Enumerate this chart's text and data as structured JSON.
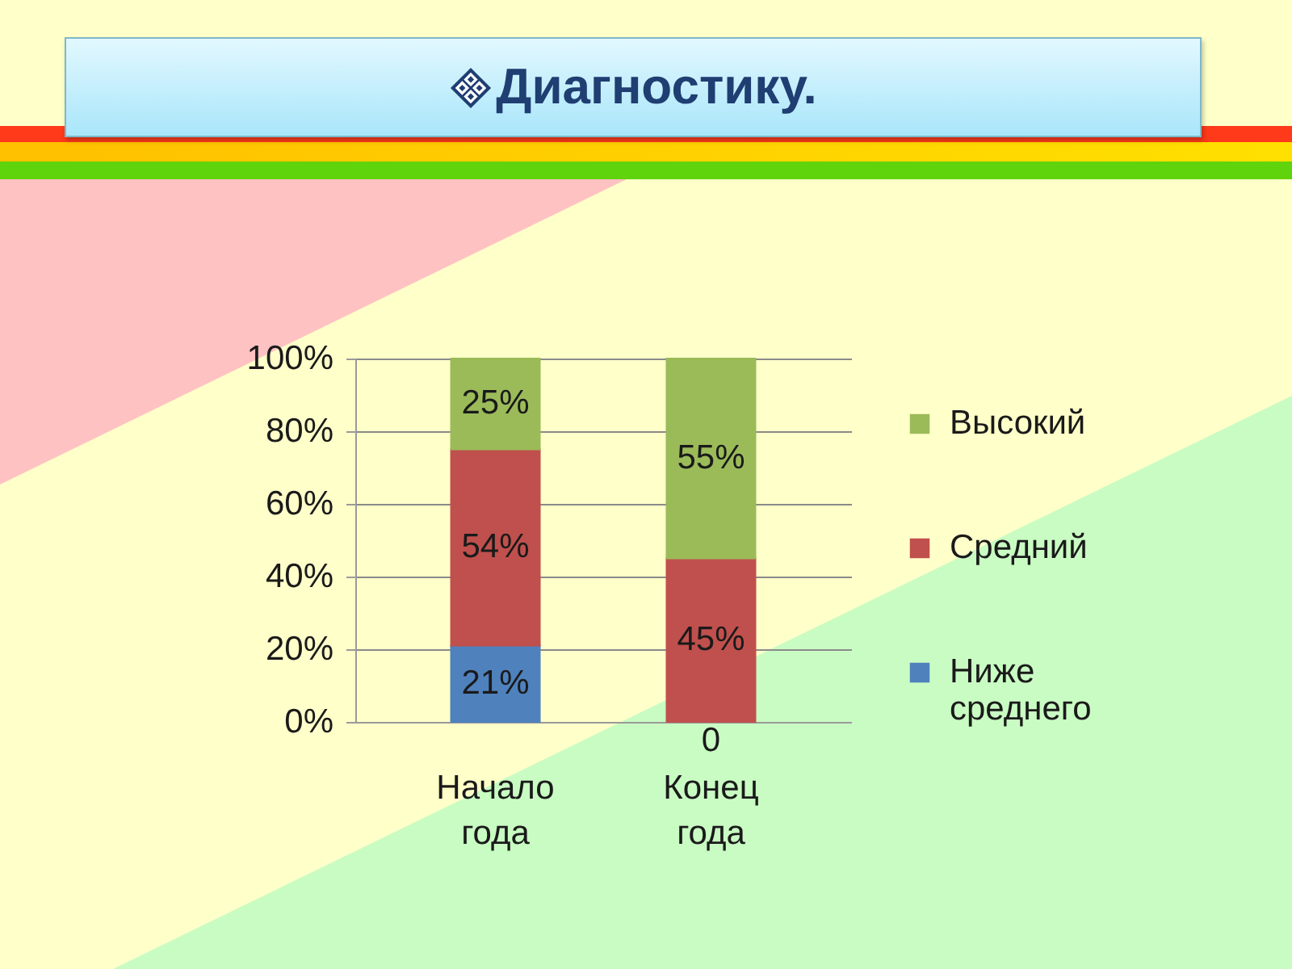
{
  "chart_data": {
    "type": "bar",
    "title": "Диагностику.",
    "categories": [
      "Начало года",
      "Конец года"
    ],
    "stacked": true,
    "series": [
      {
        "name": "Ниже среднего",
        "color": "#4f81bd",
        "values": [
          21,
          0
        ],
        "value_labels": [
          "21%",
          "0"
        ]
      },
      {
        "name": "Средний",
        "color": "#c0504d",
        "values": [
          54,
          45
        ],
        "value_labels": [
          "54%",
          "45%"
        ]
      },
      {
        "name": "Высокий",
        "color": "#9bbb59",
        "values": [
          25,
          55
        ],
        "value_labels": [
          "25%",
          "55%"
        ]
      }
    ],
    "ylim": [
      0,
      100
    ],
    "yticks": [
      {
        "value": 0,
        "label": "0%"
      },
      {
        "value": 20,
        "label": "20%"
      },
      {
        "value": 40,
        "label": "40%"
      },
      {
        "value": 60,
        "label": "60%"
      },
      {
        "value": 80,
        "label": "80%"
      },
      {
        "value": 100,
        "label": "100%"
      }
    ],
    "grid": "y",
    "legend": "right"
  }
}
